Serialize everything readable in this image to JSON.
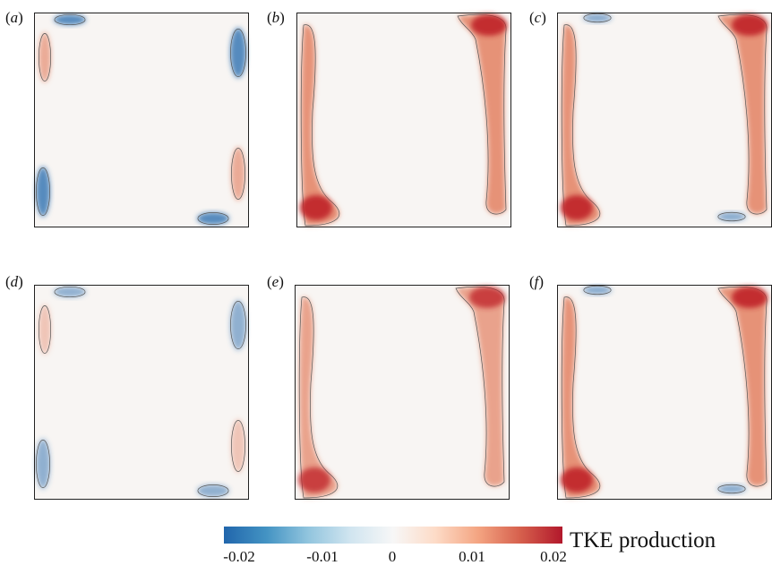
{
  "panels": [
    {
      "id": "a",
      "label": "a",
      "pattern": "weak-corner"
    },
    {
      "id": "b",
      "label": "b",
      "pattern": "strong-side"
    },
    {
      "id": "c",
      "label": "c",
      "pattern": "strong-side-blue"
    },
    {
      "id": "d",
      "label": "d",
      "pattern": "weak-corner-faint"
    },
    {
      "id": "e",
      "label": "e",
      "pattern": "strong-side-mild"
    },
    {
      "id": "f",
      "label": "f",
      "pattern": "strong-side-blue"
    }
  ],
  "colorbar": {
    "title": "TKE production",
    "ticks": [
      "-0.02",
      "-0.01",
      "0",
      "0.01",
      "0.02"
    ],
    "range": [
      -0.02,
      0.02
    ],
    "colors": [
      "#2166ac",
      "#4393c3",
      "#92c5de",
      "#d1e5f0",
      "#f7f7f7",
      "#fddbc7",
      "#f4a582",
      "#d6604d",
      "#b2182b"
    ]
  }
}
